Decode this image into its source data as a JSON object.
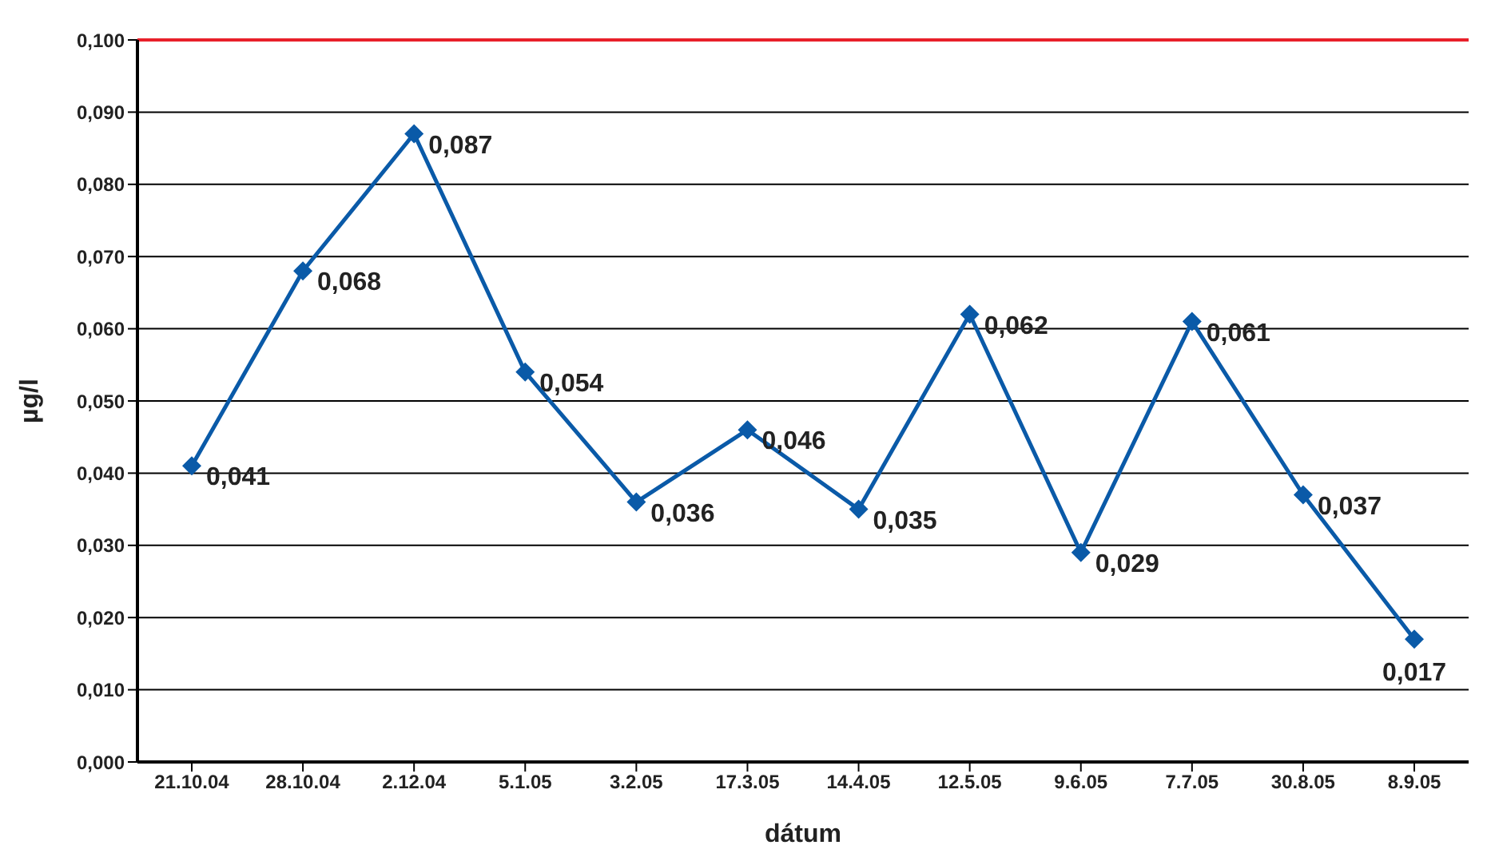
{
  "chart_data": {
    "type": "line",
    "xlabel": "dátum",
    "ylabel": "µg/l",
    "categories": [
      "21.10.04",
      "28.10.04",
      "2.12.04",
      "5.1.05",
      "3.2.05",
      "17.3.05",
      "14.4.05",
      "12.5.05",
      "9.6.05",
      "7.7.05",
      "30.8.05",
      "8.9.05"
    ],
    "series": [
      {
        "color": "#0a5aa8",
        "values": [
          0.041,
          0.068,
          0.087,
          0.054,
          0.036,
          0.046,
          0.035,
          0.062,
          0.029,
          0.061,
          0.037,
          0.017
        ],
        "value_labels": [
          "0,041",
          "0,068",
          "0,087",
          "0,054",
          "0,036",
          "0,046",
          "0,035",
          "0,062",
          "0,029",
          "0,061",
          "0,037",
          "0,017"
        ]
      }
    ],
    "ylim": [
      0,
      0.1
    ],
    "yticks": [
      {
        "value": 0,
        "label": "0,000"
      },
      {
        "value": 0.01,
        "label": "0,010"
      },
      {
        "value": 0.02,
        "label": "0,020"
      },
      {
        "value": 0.03,
        "label": "0,030"
      },
      {
        "value": 0.04,
        "label": "0,040"
      },
      {
        "value": 0.05,
        "label": "0,050"
      },
      {
        "value": 0.06,
        "label": "0,060"
      },
      {
        "value": 0.07,
        "label": "0,070"
      },
      {
        "value": 0.08,
        "label": "0,080"
      },
      {
        "value": 0.09,
        "label": "0,090"
      },
      {
        "value": 0.1,
        "label": "0,100"
      }
    ],
    "ref_lines": [
      {
        "axis": "y",
        "value": 0.1,
        "color": "#e8202a"
      }
    ],
    "grid": "y",
    "marker": "diamond",
    "line_style": "solid",
    "legend": false
  }
}
